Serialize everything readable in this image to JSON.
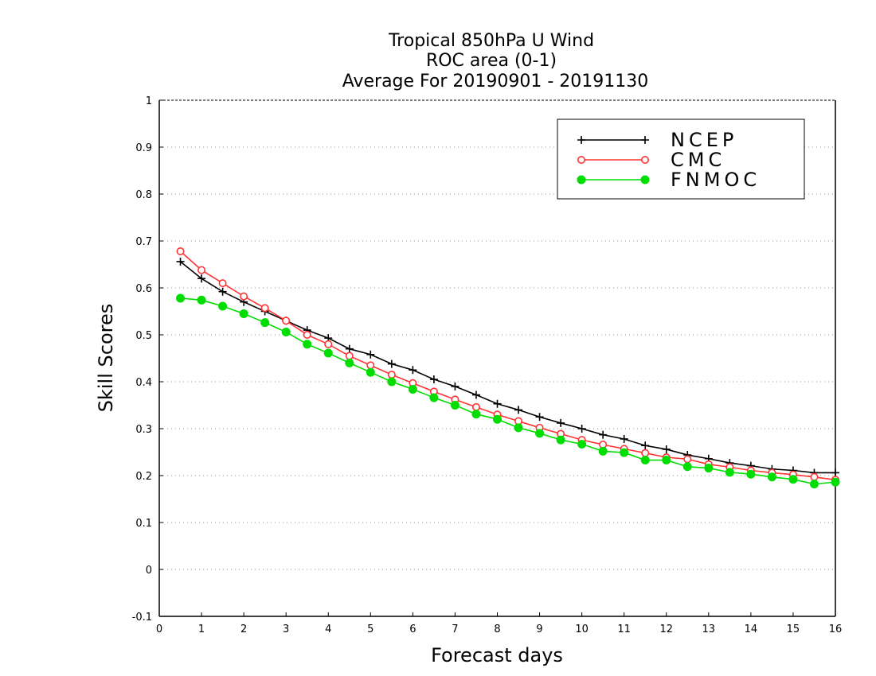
{
  "chart_data": {
    "type": "line",
    "title_lines": [
      "Tropical 850hPa U Wind",
      "ROC area (0-1)",
      "Average For 20190901 - 20191130"
    ],
    "xlabel": "Forecast days",
    "ylabel": "Skill Scores",
    "xlim": [
      0,
      16
    ],
    "ylim": [
      -0.1,
      1
    ],
    "xticks": [
      "0",
      "1",
      "2",
      "3",
      "4",
      "5",
      "6",
      "7",
      "8",
      "9",
      "10",
      "11",
      "12",
      "13",
      "14",
      "15",
      "16"
    ],
    "yticks": [
      "1",
      "0.9",
      "0.8",
      "0.7",
      "0.6",
      "0.5",
      "0.4",
      "0.3",
      "0.2",
      "0.1",
      "0",
      "-0.1"
    ],
    "grid": true,
    "legend_position": "top-right",
    "x": [
      0.5,
      1,
      1.5,
      2,
      2.5,
      3,
      3.5,
      4,
      4.5,
      5,
      5.5,
      6,
      6.5,
      7,
      7.5,
      8,
      8.5,
      9,
      9.5,
      10,
      10.5,
      11,
      11.5,
      12,
      12.5,
      13,
      13.5,
      14,
      14.5,
      15,
      15.5,
      16
    ],
    "series": [
      {
        "name": "NCEP",
        "color": "#000000",
        "marker": "plus",
        "values": [
          0.656,
          0.62,
          0.592,
          0.57,
          0.55,
          0.53,
          0.51,
          0.493,
          0.47,
          0.458,
          0.438,
          0.425,
          0.405,
          0.39,
          0.372,
          0.353,
          0.34,
          0.325,
          0.312,
          0.3,
          0.287,
          0.278,
          0.264,
          0.256,
          0.244,
          0.236,
          0.227,
          0.221,
          0.214,
          0.211,
          0.206,
          0.206
        ]
      },
      {
        "name": "CMC",
        "color": "#ff3333",
        "marker": "open-circle",
        "values": [
          0.678,
          0.638,
          0.61,
          0.582,
          0.557,
          0.53,
          0.5,
          0.48,
          0.455,
          0.435,
          0.415,
          0.397,
          0.379,
          0.362,
          0.346,
          0.33,
          0.316,
          0.302,
          0.289,
          0.276,
          0.266,
          0.257,
          0.248,
          0.239,
          0.235,
          0.224,
          0.218,
          0.211,
          0.206,
          0.202,
          0.197,
          0.191
        ]
      },
      {
        "name": "FNMOC",
        "color": "#00dd00",
        "marker": "filled-circle",
        "values": [
          0.578,
          0.574,
          0.561,
          0.545,
          0.526,
          0.506,
          0.48,
          0.461,
          0.44,
          0.42,
          0.4,
          0.384,
          0.366,
          0.35,
          0.331,
          0.32,
          0.302,
          0.29,
          0.276,
          0.267,
          0.252,
          0.249,
          0.233,
          0.233,
          0.219,
          0.216,
          0.207,
          0.203,
          0.197,
          0.192,
          0.182,
          0.186
        ]
      }
    ]
  }
}
